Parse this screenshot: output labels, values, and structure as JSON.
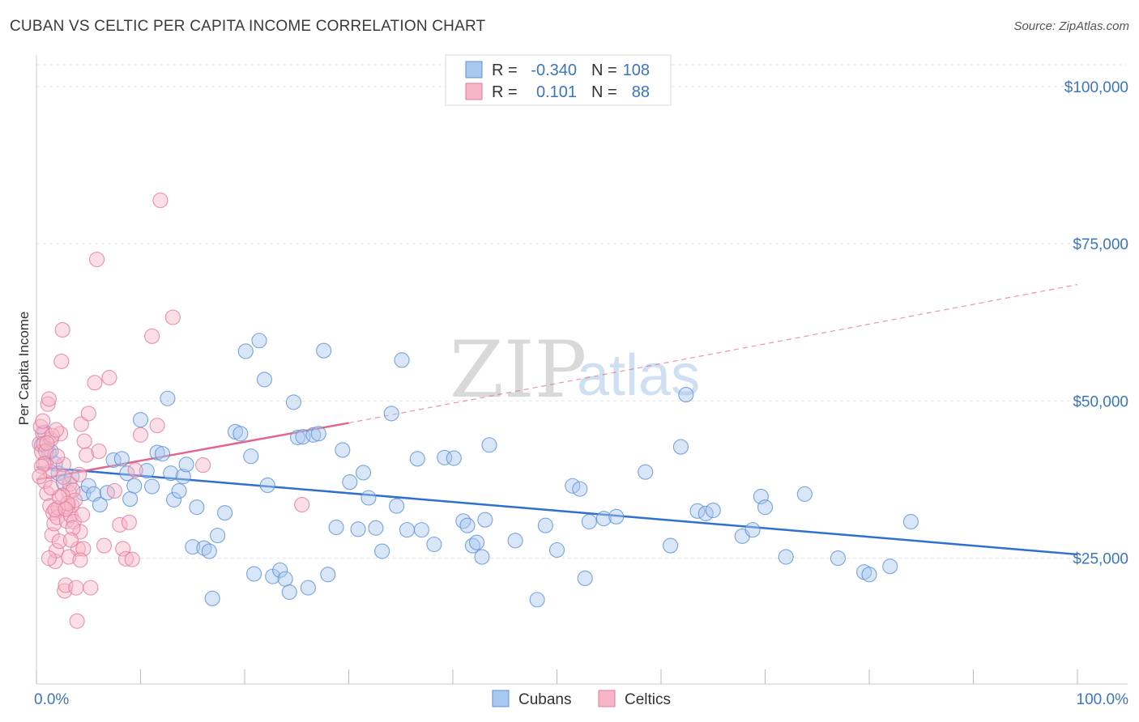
{
  "title": "CUBAN VS CELTIC PER CAPITA INCOME CORRELATION CHART",
  "source": "Source: ZipAtlas.com",
  "watermark": {
    "zip": "ZIP",
    "atlas": "atlas"
  },
  "legend_top": [
    {
      "r_label": "R =",
      "r_value": "-0.340",
      "n_label": "N =",
      "n_value": "108",
      "color": "#a9c8f0",
      "stroke": "#5b90d6"
    },
    {
      "r_label": "R =",
      "r_value": "0.101",
      "n_label": "N =",
      "n_value": "88",
      "color": "#f7b6c8",
      "stroke": "#e27a9b"
    }
  ],
  "legend_bottom": [
    {
      "name": "Cubans",
      "color": "#a9c8f0",
      "stroke": "#5b90d6"
    },
    {
      "name": "Celtics",
      "color": "#f7b6c8",
      "stroke": "#e27a9b"
    }
  ],
  "chart_data": {
    "type": "scatter",
    "xlabel": "",
    "ylabel": "Per Capita Income",
    "xlim": [
      0,
      100
    ],
    "ylim": [
      5000,
      105000
    ],
    "x_tick_labels": [
      {
        "value": 0,
        "label": "0.0%"
      },
      {
        "value": 100,
        "label": "100.0%"
      }
    ],
    "y_ticks": [
      {
        "value": 25000,
        "label": "$25,000"
      },
      {
        "value": 50000,
        "label": "$50,000"
      },
      {
        "value": 75000,
        "label": "$75,000"
      },
      {
        "value": 100000,
        "label": "$100,000"
      }
    ],
    "grid": true,
    "series": [
      {
        "name": "Cubans",
        "color": "#a9c8f0",
        "stroke": "#5b90d6",
        "trend": {
          "x0": 0,
          "y0": 39500,
          "x1": 100,
          "y1": 25600,
          "color": "#2f6fd0"
        },
        "points": [
          [
            0.5,
            43000
          ],
          [
            0.8,
            45000
          ],
          [
            1.2,
            41800
          ],
          [
            1.4,
            42000
          ],
          [
            1.8,
            40000
          ],
          [
            2.1,
            38500
          ],
          [
            2.6,
            37000
          ],
          [
            3.4,
            38000
          ],
          [
            4.5,
            35300
          ],
          [
            5.0,
            36500
          ],
          [
            5.5,
            35200
          ],
          [
            6.1,
            33500
          ],
          [
            6.8,
            35400
          ],
          [
            7.4,
            40600
          ],
          [
            8.2,
            40800
          ],
          [
            8.7,
            38500
          ],
          [
            9.0,
            34400
          ],
          [
            9.4,
            36500
          ],
          [
            10.0,
            47000
          ],
          [
            10.6,
            38900
          ],
          [
            11.1,
            36400
          ],
          [
            11.6,
            41800
          ],
          [
            12.1,
            41600
          ],
          [
            12.6,
            50400
          ],
          [
            12.9,
            38500
          ],
          [
            13.2,
            34300
          ],
          [
            13.7,
            35700
          ],
          [
            14.1,
            38000
          ],
          [
            14.4,
            39900
          ],
          [
            15.0,
            26800
          ],
          [
            15.4,
            33100
          ],
          [
            16.1,
            26600
          ],
          [
            16.6,
            26100
          ],
          [
            16.9,
            18600
          ],
          [
            17.4,
            28600
          ],
          [
            18.1,
            32200
          ],
          [
            19.1,
            45100
          ],
          [
            19.6,
            44800
          ],
          [
            20.1,
            57900
          ],
          [
            20.6,
            41200
          ],
          [
            20.9,
            22500
          ],
          [
            21.4,
            59600
          ],
          [
            21.9,
            53400
          ],
          [
            22.2,
            36600
          ],
          [
            22.7,
            22100
          ],
          [
            23.4,
            23100
          ],
          [
            23.9,
            21700
          ],
          [
            24.3,
            19600
          ],
          [
            24.7,
            49800
          ],
          [
            25.1,
            44200
          ],
          [
            25.6,
            44300
          ],
          [
            26.1,
            20300
          ],
          [
            26.6,
            44600
          ],
          [
            27.1,
            44800
          ],
          [
            27.6,
            58000
          ],
          [
            28.0,
            22400
          ],
          [
            28.8,
            29900
          ],
          [
            29.4,
            42200
          ],
          [
            30.1,
            37100
          ],
          [
            30.9,
            29600
          ],
          [
            31.4,
            38600
          ],
          [
            31.9,
            34600
          ],
          [
            32.6,
            29800
          ],
          [
            33.2,
            26100
          ],
          [
            34.1,
            48000
          ],
          [
            34.6,
            33300
          ],
          [
            35.1,
            56500
          ],
          [
            35.6,
            29500
          ],
          [
            36.6,
            40800
          ],
          [
            37.0,
            29500
          ],
          [
            38.2,
            27200
          ],
          [
            39.2,
            41000
          ],
          [
            40.1,
            40900
          ],
          [
            41.0,
            30900
          ],
          [
            41.4,
            30200
          ],
          [
            41.9,
            27000
          ],
          [
            42.3,
            27500
          ],
          [
            42.8,
            25200
          ],
          [
            43.1,
            31100
          ],
          [
            43.5,
            43000
          ],
          [
            46.0,
            27800
          ],
          [
            48.1,
            18400
          ],
          [
            48.9,
            30200
          ],
          [
            50.0,
            26300
          ],
          [
            51.5,
            36500
          ],
          [
            52.2,
            36000
          ],
          [
            52.7,
            21800
          ],
          [
            53.1,
            30800
          ],
          [
            54.5,
            31300
          ],
          [
            55.7,
            31600
          ],
          [
            58.5,
            38700
          ],
          [
            60.9,
            27000
          ],
          [
            61.9,
            42700
          ],
          [
            62.4,
            51000
          ],
          [
            63.5,
            32500
          ],
          [
            64.3,
            32100
          ],
          [
            65.0,
            32600
          ],
          [
            67.8,
            28500
          ],
          [
            68.8,
            29500
          ],
          [
            69.6,
            34800
          ],
          [
            70.0,
            33100
          ],
          [
            72.0,
            25200
          ],
          [
            73.8,
            35200
          ],
          [
            77.0,
            25000
          ],
          [
            79.5,
            22800
          ],
          [
            80.0,
            22400
          ],
          [
            82.0,
            23700
          ],
          [
            84.0,
            30800
          ]
        ]
      },
      {
        "name": "Celtics",
        "color": "#f7b6c8",
        "stroke": "#e27a9b",
        "trend": {
          "x0": 0,
          "y0": 37500,
          "x1": 30,
          "y1": 46500,
          "x2": 100,
          "y2": 68500,
          "color": "#e2668e"
        },
        "points": [
          [
            0.3,
            43200
          ],
          [
            0.5,
            41900
          ],
          [
            0.6,
            44900
          ],
          [
            0.7,
            43200
          ],
          [
            0.8,
            37200
          ],
          [
            0.9,
            40100
          ],
          [
            1.0,
            35300
          ],
          [
            1.1,
            49500
          ],
          [
            1.2,
            50300
          ],
          [
            1.3,
            33300
          ],
          [
            1.4,
            43900
          ],
          [
            1.5,
            28700
          ],
          [
            1.6,
            32200
          ],
          [
            1.7,
            30500
          ],
          [
            1.8,
            24500
          ],
          [
            1.9,
            26200
          ],
          [
            2.0,
            31500
          ],
          [
            2.1,
            33000
          ],
          [
            2.2,
            27700
          ],
          [
            2.3,
            44800
          ],
          [
            2.4,
            56300
          ],
          [
            2.5,
            61300
          ],
          [
            2.6,
            39900
          ],
          [
            2.7,
            19800
          ],
          [
            2.8,
            20700
          ],
          [
            2.9,
            30900
          ],
          [
            3.0,
            33200
          ],
          [
            3.1,
            35500
          ],
          [
            3.2,
            36800
          ],
          [
            3.3,
            31800
          ],
          [
            3.4,
            33400
          ],
          [
            3.5,
            35800
          ],
          [
            3.6,
            30800
          ],
          [
            3.7,
            34200
          ],
          [
            3.8,
            20300
          ],
          [
            3.9,
            15000
          ],
          [
            4.0,
            26500
          ],
          [
            4.1,
            38300
          ],
          [
            4.2,
            29200
          ],
          [
            4.3,
            46300
          ],
          [
            4.4,
            31900
          ],
          [
            4.5,
            26500
          ],
          [
            4.6,
            43600
          ],
          [
            4.8,
            41400
          ],
          [
            5.0,
            48000
          ],
          [
            5.2,
            20300
          ],
          [
            5.6,
            52900
          ],
          [
            5.8,
            72500
          ],
          [
            6.0,
            42000
          ],
          [
            6.5,
            27000
          ],
          [
            7.0,
            53700
          ],
          [
            7.5,
            35700
          ],
          [
            8.0,
            30300
          ],
          [
            8.3,
            26500
          ],
          [
            8.6,
            24900
          ],
          [
            8.9,
            30700
          ],
          [
            9.2,
            24800
          ],
          [
            9.5,
            39000
          ],
          [
            10.0,
            44600
          ],
          [
            11.1,
            60300
          ],
          [
            11.6,
            46100
          ],
          [
            11.9,
            81900
          ],
          [
            13.1,
            63300
          ],
          [
            16.0,
            39800
          ],
          [
            25.5,
            33500
          ],
          [
            0.4,
            45900
          ],
          [
            0.9,
            42000
          ],
          [
            1.3,
            38800
          ],
          [
            1.5,
            44500
          ],
          [
            2.0,
            41200
          ],
          [
            2.5,
            35000
          ],
          [
            3.0,
            33700
          ],
          [
            3.5,
            29800
          ],
          [
            0.6,
            46800
          ],
          [
            1.0,
            43300
          ],
          [
            0.7,
            40000
          ],
          [
            1.8,
            32700
          ],
          [
            2.2,
            34700
          ],
          [
            0.5,
            39600
          ],
          [
            3.1,
            25200
          ],
          [
            1.2,
            25000
          ],
          [
            4.2,
            24700
          ],
          [
            2.6,
            37900
          ],
          [
            1.4,
            36200
          ],
          [
            0.3,
            38000
          ],
          [
            1.9,
            45400
          ],
          [
            2.8,
            32800
          ],
          [
            3.3,
            27900
          ]
        ]
      }
    ]
  }
}
